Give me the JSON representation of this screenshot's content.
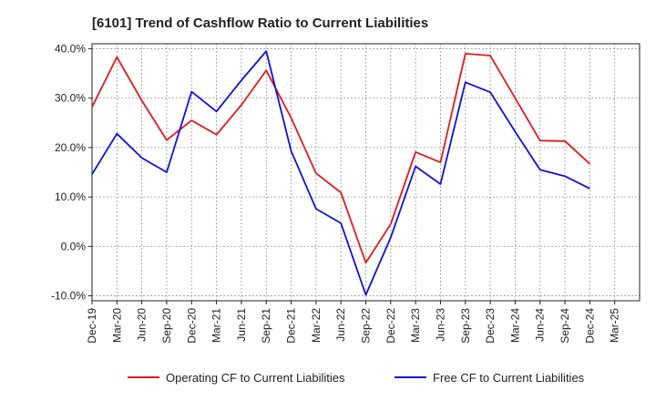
{
  "chart_data": {
    "type": "line",
    "title": "[6101]  Trend of Cashflow Ratio to Current Liabilities",
    "xlabel": "",
    "ylabel": "",
    "x": [
      "Dec-19",
      "Mar-20",
      "Jun-20",
      "Sep-20",
      "Dec-20",
      "Mar-21",
      "Jun-21",
      "Sep-21",
      "Dec-21",
      "Mar-22",
      "Jun-22",
      "Sep-22",
      "Dec-22",
      "Mar-23",
      "Jun-23",
      "Sep-23",
      "Dec-23",
      "Mar-24",
      "Jun-24",
      "Sep-24",
      "Dec-24",
      "Mar-25"
    ],
    "x_tick_labels": [
      "Dec-19",
      "Mar-20",
      "Jun-20",
      "Sep-20",
      "Dec-20",
      "Mar-21",
      "Jun-21",
      "Sep-21",
      "Dec-21",
      "Mar-22",
      "Jun-22",
      "Sep-22",
      "Dec-22",
      "Mar-23",
      "Jun-23",
      "Sep-23",
      "Dec-23",
      "Mar-24",
      "Jun-24",
      "Sep-24",
      "Dec-24",
      "Mar-25"
    ],
    "ylim": [
      -11,
      41
    ],
    "y_ticks": [
      -10,
      0,
      10,
      20,
      30,
      40
    ],
    "y_tick_labels": [
      "-10.0%",
      "0.0%",
      "10.0%",
      "20.0%",
      "30.0%",
      "40.0%"
    ],
    "grid": true,
    "legend_position": "bottom",
    "series": [
      {
        "name": "Operating CF to Current Liabilities",
        "color": "#e31a1c",
        "values": [
          28.2,
          38.3,
          29.5,
          21.5,
          25.5,
          22.6,
          28.6,
          35.6,
          26.0,
          14.8,
          10.9,
          -3.3,
          4.5,
          19.1,
          17.0,
          39.0,
          38.6,
          30.0,
          21.4,
          21.3,
          16.7,
          null
        ]
      },
      {
        "name": "Free CF to Current Liabilities",
        "color": "#1010e0",
        "values": [
          14.6,
          22.8,
          17.9,
          15.0,
          31.3,
          27.3,
          33.6,
          39.5,
          19.3,
          7.6,
          4.7,
          -9.8,
          1.8,
          16.2,
          12.6,
          33.2,
          31.2,
          23.2,
          15.5,
          14.2,
          11.7,
          null
        ]
      }
    ]
  }
}
